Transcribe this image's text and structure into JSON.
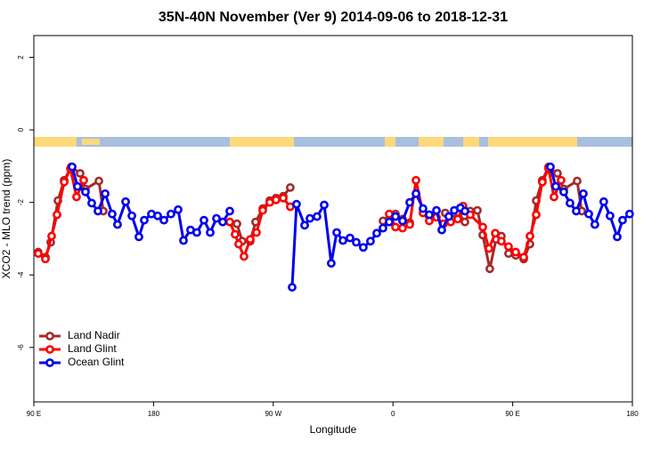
{
  "chart_data": {
    "type": "line",
    "title": "35N-40N November (Ver 9)   2014-09-06 to 2018-12-31",
    "xlabel": "Longitude",
    "ylabel": "XCO2 - MLO trend (ppm)",
    "xlim": [
      90,
      540
    ],
    "ylim": [
      -7.5,
      2.6
    ],
    "xticks": [
      {
        "value": 90,
        "label": "90 E"
      },
      {
        "value": 180,
        "label": "180"
      },
      {
        "value": 270,
        "label": "90 W"
      },
      {
        "value": 360,
        "label": "0"
      },
      {
        "value": 450,
        "label": "90 E"
      },
      {
        "value": 540,
        "label": "180"
      }
    ],
    "yticks": [
      -6,
      -4,
      -2,
      0,
      2
    ],
    "legend": "bottomleft",
    "series": [
      {
        "name": "Land Nadir",
        "color": "#a52a2a",
        "x": [
          93.3,
          98.7,
          102.7,
          108.1,
          112.8,
          118.1,
          124.8,
          128.8,
          138.9,
          142.2,
          237.3,
          242.7,
          246.7,
          252.7,
          256.7,
          262.1,
          267.4,
          272.1,
          277.5,
          282.8,
          352.5,
          357.2,
          361.9,
          367.2,
          372.6,
          399.3,
          404.7,
          409.4,
          414.1,
          418.1,
          423.5,
          427.5,
          432.8,
          437.5,
          441.5,
          446.9,
          452.3,
          458.3,
          463.0,
          467.7,
          472.3,
          477.0,
          483.7,
          488.4,
          498.5,
          501.9
        ],
        "values": [
          -3.37,
          -3.51,
          -3.1,
          -1.95,
          -1.39,
          -1.02,
          -1.2,
          -1.63,
          -1.41,
          -2.24,
          -2.54,
          -2.59,
          -3.07,
          -3.07,
          -2.54,
          -2.17,
          -1.95,
          -1.88,
          -1.83,
          -1.59,
          -2.51,
          -2.44,
          -2.32,
          -2.46,
          -2.56,
          -2.29,
          -2.46,
          -2.29,
          -2.54,
          -2.24,
          -2.22,
          -2.9,
          -3.83,
          -3.02,
          -2.93,
          -3.41,
          -3.46,
          -3.56,
          -3.15,
          -1.95,
          -1.39,
          -1.02,
          -1.2,
          -1.63,
          -1.41,
          -2.24
        ]
      },
      {
        "name": "Land Glint",
        "color": "#ff0000",
        "x": [
          93.3,
          98.7,
          103.4,
          107.4,
          112.8,
          117.5,
          122.1,
          127.5,
          237.3,
          241.3,
          244.0,
          248.0,
          252.7,
          257.4,
          262.1,
          267.4,
          272.1,
          277.5,
          282.8,
          357.2,
          361.9,
          367.2,
          372.6,
          377.3,
          382.6,
          387.3,
          392.7,
          398.0,
          403.4,
          408.7,
          412.7,
          418.1,
          427.5,
          432.2,
          436.9,
          441.5,
          446.9,
          452.3,
          458.3,
          463.0,
          467.7,
          472.3,
          477.0,
          481.1,
          486.4
        ],
        "values": [
          -3.41,
          -3.56,
          -2.93,
          -2.34,
          -1.44,
          -1.07,
          -1.85,
          -1.39,
          -2.54,
          -2.88,
          -3.15,
          -3.49,
          -3.02,
          -2.83,
          -2.22,
          -2.0,
          -1.93,
          -1.88,
          -2.12,
          -2.32,
          -2.68,
          -2.71,
          -2.61,
          -1.39,
          -2.29,
          -2.51,
          -2.41,
          -2.59,
          -2.54,
          -2.46,
          -2.1,
          -2.34,
          -2.68,
          -3.27,
          -2.85,
          -3.07,
          -3.22,
          -3.37,
          -3.51,
          -2.93,
          -2.34,
          -1.44,
          -1.07,
          -1.85,
          -1.39
        ]
      },
      {
        "name": "Ocean Glint",
        "color": "#0000ee",
        "x": [
          118.8,
          122.8,
          128.8,
          133.5,
          138.2,
          143.6,
          148.9,
          152.9,
          159.0,
          163.7,
          169.0,
          173.0,
          178.4,
          183.1,
          187.8,
          193.1,
          198.5,
          202.5,
          207.8,
          212.5,
          217.9,
          222.6,
          227.3,
          232.0,
          237.3,
          284.2,
          287.5,
          293.6,
          297.6,
          302.9,
          308.3,
          313.6,
          317.7,
          322.4,
          327.7,
          332.4,
          337.7,
          343.1,
          347.8,
          352.5,
          357.2,
          361.9,
          367.2,
          372.6,
          377.3,
          382.6,
          387.3,
          392.7,
          396.7,
          402.0,
          406.1,
          410.7,
          414.1,
          478.4,
          482.4,
          488.4,
          493.1,
          497.8,
          503.1,
          507.2,
          511.8,
          518.5,
          523.2,
          528.6,
          532.6,
          537.9
        ],
        "values": [
          -1.02,
          -1.56,
          -1.71,
          -2.02,
          -2.24,
          -1.76,
          -2.32,
          -2.61,
          -1.98,
          -2.37,
          -2.95,
          -2.49,
          -2.32,
          -2.37,
          -2.49,
          -2.32,
          -2.2,
          -3.05,
          -2.76,
          -2.83,
          -2.49,
          -2.83,
          -2.44,
          -2.54,
          -2.24,
          -4.34,
          -2.05,
          -2.63,
          -2.44,
          -2.39,
          -2.07,
          -3.68,
          -2.83,
          -3.05,
          -2.98,
          -3.1,
          -3.24,
          -3.07,
          -2.85,
          -2.71,
          -2.54,
          -2.39,
          -2.51,
          -2.0,
          -1.76,
          -2.17,
          -2.34,
          -2.22,
          -2.76,
          -2.39,
          -2.22,
          -2.15,
          -2.24,
          -1.02,
          -1.56,
          -1.71,
          -2.02,
          -2.24,
          -1.76,
          -2.32,
          -2.61,
          -1.98,
          -2.37,
          -2.95,
          -2.49,
          -2.32
        ]
      }
    ]
  }
}
